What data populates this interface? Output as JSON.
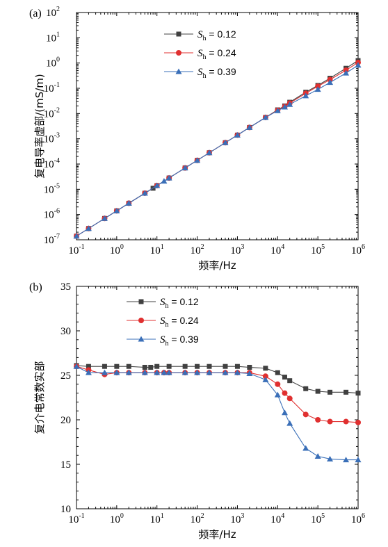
{
  "colors": {
    "s1": "#404040",
    "s2": "#e03030",
    "s3": "#3a6fb8",
    "axis": "#000000"
  },
  "chart_data": [
    {
      "panel_label": "(a)",
      "type": "line",
      "scale": {
        "x": "log",
        "y": "log"
      },
      "xlabel": "频率/Hz",
      "ylabel": "复电导率虚部/(mS/m)",
      "xlim": [
        0.1,
        1000000
      ],
      "ylim": [
        1e-07,
        100
      ],
      "x_ticks": {
        "base": "10",
        "exponents": [
          "-1",
          "0",
          "1",
          "2",
          "3",
          "4",
          "5",
          "6"
        ]
      },
      "y_ticks": {
        "base": "10",
        "exponents": [
          "-7",
          "-6",
          "-5",
          "-4",
          "-3",
          "-2",
          "-1",
          "0",
          "1",
          "2"
        ]
      },
      "legend_position": "top-center",
      "series": [
        {
          "symbol": "S",
          "subscript": "h",
          "value_text": " = 0.12",
          "marker": "square",
          "x": [
            0.1,
            0.2,
            0.5,
            1,
            2,
            5,
            8,
            10,
            20,
            50,
            100,
            200,
            500,
            1000,
            2000,
            5000,
            10000,
            15000,
            20000,
            50000,
            100000,
            200000,
            500000,
            1000000
          ],
          "y": [
            1.4e-07,
            2.8e-07,
            7e-07,
            1.4e-06,
            2.8e-06,
            7e-06,
            1.1e-05,
            1.4e-05,
            2.8e-05,
            7e-05,
            0.00014,
            0.00028,
            0.0007,
            0.0014,
            0.0028,
            0.007,
            0.014,
            0.02,
            0.028,
            0.07,
            0.13,
            0.25,
            0.62,
            1.25
          ]
        },
        {
          "symbol": "S",
          "subscript": "h",
          "value_text": " = 0.24",
          "marker": "circle",
          "x": [
            0.1,
            0.2,
            0.5,
            1,
            2,
            5,
            10,
            20,
            50,
            100,
            200,
            500,
            1000,
            2000,
            5000,
            10000,
            15000,
            20000,
            50000,
            100000,
            200000,
            500000,
            1000000
          ],
          "y": [
            1.4e-07,
            2.8e-07,
            7e-07,
            1.4e-06,
            2.8e-06,
            7e-06,
            1.4e-05,
            2.8e-05,
            7e-05,
            0.00014,
            0.00028,
            0.0007,
            0.0014,
            0.0028,
            0.007,
            0.0135,
            0.019,
            0.026,
            0.063,
            0.12,
            0.22,
            0.52,
            1.05
          ]
        },
        {
          "symbol": "S",
          "subscript": "h",
          "value_text": " = 0.39",
          "marker": "triangle",
          "x": [
            0.1,
            0.2,
            0.5,
            1,
            2,
            5,
            10,
            15,
            20,
            50,
            100,
            200,
            500,
            1000,
            2000,
            5000,
            10000,
            15000,
            20000,
            50000,
            100000,
            200000,
            500000,
            1000000
          ],
          "y": [
            1.4e-07,
            2.8e-07,
            7e-07,
            1.4e-06,
            2.8e-06,
            7e-06,
            1.4e-05,
            2.1e-05,
            2.8e-05,
            7e-05,
            0.00014,
            0.00028,
            0.0007,
            0.0014,
            0.0028,
            0.007,
            0.013,
            0.018,
            0.023,
            0.05,
            0.09,
            0.17,
            0.4,
            0.82
          ]
        }
      ]
    },
    {
      "panel_label": "(b)",
      "type": "line",
      "scale": {
        "x": "log",
        "y": "linear"
      },
      "xlabel": "频率/Hz",
      "ylabel": "复介电常数实部",
      "xlim": [
        0.1,
        1000000
      ],
      "ylim": [
        10,
        35
      ],
      "x_ticks": {
        "base": "10",
        "exponents": [
          "-1",
          "0",
          "1",
          "2",
          "3",
          "4",
          "5",
          "6"
        ]
      },
      "y_ticks": [
        "10",
        "15",
        "20",
        "25",
        "30",
        "35"
      ],
      "legend_position": "top-center",
      "series": [
        {
          "symbol": "S",
          "subscript": "h",
          "value_text": " = 0.12",
          "marker": "square",
          "x": [
            0.1,
            0.2,
            0.5,
            1,
            2,
            5,
            7,
            10,
            20,
            50,
            100,
            200,
            500,
            1000,
            2000,
            5000,
            10000,
            15000,
            20000,
            50000,
            100000,
            200000,
            500000,
            1000000
          ],
          "y": [
            26.1,
            26.0,
            26.0,
            26.0,
            26.0,
            25.9,
            25.9,
            26.0,
            26.0,
            26.0,
            26.0,
            26.0,
            26.0,
            26.0,
            25.9,
            25.8,
            25.3,
            24.8,
            24.4,
            23.5,
            23.2,
            23.1,
            23.1,
            23.0
          ]
        },
        {
          "symbol": "S",
          "subscript": "h",
          "value_text": " = 0.24",
          "marker": "circle",
          "x": [
            0.1,
            0.2,
            0.5,
            1,
            2,
            5,
            10,
            15,
            20,
            50,
            100,
            200,
            500,
            1000,
            2000,
            5000,
            10000,
            15000,
            20000,
            50000,
            100000,
            200000,
            500000,
            1000000
          ],
          "y": [
            26.0,
            25.6,
            25.1,
            25.3,
            25.3,
            25.3,
            25.3,
            25.3,
            25.3,
            25.3,
            25.3,
            25.3,
            25.3,
            25.3,
            25.3,
            24.9,
            24.0,
            23.0,
            22.4,
            20.6,
            20.0,
            19.8,
            19.8,
            19.7
          ]
        },
        {
          "symbol": "S",
          "subscript": "h",
          "value_text": " = 0.39",
          "marker": "triangle",
          "x": [
            0.1,
            0.2,
            0.5,
            1,
            2,
            5,
            10,
            15,
            20,
            50,
            100,
            200,
            500,
            1000,
            2000,
            5000,
            10000,
            15000,
            20000,
            50000,
            100000,
            200000,
            500000,
            1000000
          ],
          "y": [
            26.0,
            25.3,
            25.3,
            25.3,
            25.3,
            25.3,
            25.3,
            25.3,
            25.3,
            25.3,
            25.3,
            25.3,
            25.3,
            25.3,
            25.2,
            24.5,
            22.8,
            20.8,
            19.6,
            16.8,
            15.9,
            15.6,
            15.5,
            15.5
          ]
        }
      ]
    }
  ]
}
